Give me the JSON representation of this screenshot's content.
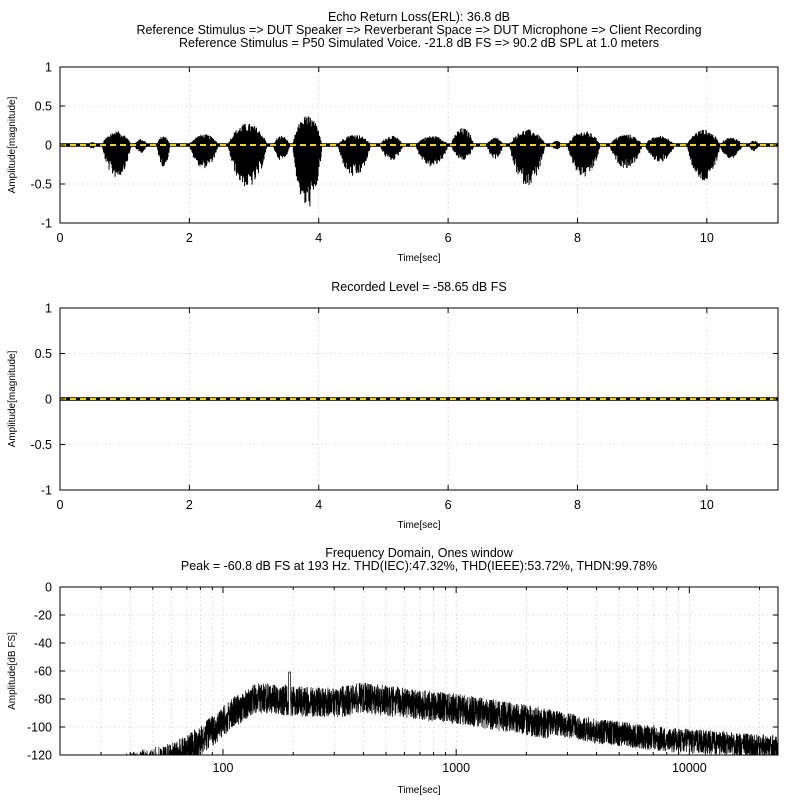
{
  "chart_data": [
    {
      "type": "line",
      "title_lines": [
        "Echo Return Loss(ERL): 36.8 dB",
        "Reference Stimulus => DUT Speaker => Reverberant Space => DUT Microphone => Client Recording",
        "Reference Stimulus = P50 Simulated Voice. -21.8 dB FS => 90.2 dB SPL at 1.0 meters"
      ],
      "xlabel": "Time[sec]",
      "ylabel": "Amplitude[magnitude]",
      "xlim": [
        0,
        11.1
      ],
      "ylim": [
        -1,
        1
      ],
      "xticks": [
        0,
        2,
        4,
        6,
        8,
        10
      ],
      "yticks": [
        1,
        0.5,
        0,
        -0.5,
        -1
      ],
      "ytick_labels": [
        "1",
        "0.5",
        "0",
        "-0.5",
        "-1"
      ],
      "grid": true,
      "zero_line_colors": [
        "#000000",
        "#f2d400"
      ],
      "series": [
        {
          "style": "waveform-envelope",
          "color": "#000000",
          "bursts": [
            {
              "start": 0.45,
              "end": 0.55,
              "upper": 0.04,
              "lower": -0.05
            },
            {
              "start": 0.65,
              "end": 1.1,
              "upper": 0.18,
              "lower": -0.42
            },
            {
              "start": 1.15,
              "end": 1.35,
              "upper": 0.08,
              "lower": -0.1
            },
            {
              "start": 1.5,
              "end": 1.7,
              "upper": 0.12,
              "lower": -0.28
            },
            {
              "start": 2.0,
              "end": 2.45,
              "upper": 0.14,
              "lower": -0.3
            },
            {
              "start": 2.6,
              "end": 3.2,
              "upper": 0.28,
              "lower": -0.55
            },
            {
              "start": 3.3,
              "end": 3.55,
              "upper": 0.12,
              "lower": -0.2
            },
            {
              "start": 3.6,
              "end": 4.05,
              "upper": 0.38,
              "lower": -0.82
            },
            {
              "start": 4.3,
              "end": 4.8,
              "upper": 0.14,
              "lower": -0.42
            },
            {
              "start": 4.95,
              "end": 5.3,
              "upper": 0.12,
              "lower": -0.2
            },
            {
              "start": 5.5,
              "end": 6.0,
              "upper": 0.12,
              "lower": -0.28
            },
            {
              "start": 6.05,
              "end": 6.4,
              "upper": 0.22,
              "lower": -0.2
            },
            {
              "start": 6.6,
              "end": 6.85,
              "upper": 0.1,
              "lower": -0.18
            },
            {
              "start": 6.95,
              "end": 7.5,
              "upper": 0.2,
              "lower": -0.52
            },
            {
              "start": 7.6,
              "end": 7.75,
              "upper": 0.06,
              "lower": -0.06
            },
            {
              "start": 7.85,
              "end": 8.35,
              "upper": 0.18,
              "lower": -0.42
            },
            {
              "start": 8.5,
              "end": 9.0,
              "upper": 0.14,
              "lower": -0.3
            },
            {
              "start": 9.05,
              "end": 9.5,
              "upper": 0.12,
              "lower": -0.22
            },
            {
              "start": 9.7,
              "end": 10.2,
              "upper": 0.2,
              "lower": -0.48
            },
            {
              "start": 10.2,
              "end": 10.55,
              "upper": 0.1,
              "lower": -0.18
            },
            {
              "start": 10.65,
              "end": 10.8,
              "upper": 0.06,
              "lower": -0.08
            }
          ]
        }
      ]
    },
    {
      "type": "line",
      "title_lines": [
        "Recorded Level = -58.65 dB FS"
      ],
      "xlabel": "Time[sec]",
      "ylabel": "Amplitude[magnitude]",
      "xlim": [
        0,
        11.1
      ],
      "ylim": [
        -1,
        1
      ],
      "xticks": [
        0,
        2,
        4,
        6,
        8,
        10
      ],
      "yticks": [
        1,
        0.5,
        0,
        -0.5,
        -1
      ],
      "ytick_labels": [
        "1",
        "0.5",
        "0",
        "-0.5",
        "-1"
      ],
      "grid": true,
      "zero_line_colors": [
        "#000000",
        "#f2d400"
      ],
      "series": []
    },
    {
      "type": "line",
      "title_lines": [
        "Frequency Domain, Ones window",
        "Peak = -60.8 dB FS at 193 Hz. THD(IEC):47.32%, THD(IEEE):53.72%, THDN:99.78%"
      ],
      "xlabel": "Time[sec]",
      "ylabel": "Amplitude[dB FS]",
      "xscale": "log",
      "xlim": [
        20,
        24000
      ],
      "ylim": [
        -120,
        0
      ],
      "xticks": [
        100,
        1000,
        10000
      ],
      "xtick_labels": [
        "100",
        "1000",
        "10000"
      ],
      "yticks": [
        0,
        -20,
        -40,
        -60,
        -80,
        -100,
        -120
      ],
      "ytick_labels": [
        "0",
        "-20",
        "-40",
        "-60",
        "-80",
        "-100",
        "-120"
      ],
      "grid": true,
      "series": [
        {
          "style": "spectrum",
          "color": "#000000",
          "peak": {
            "freq": 193,
            "db": -60.8
          },
          "envelope": [
            {
              "freq": 32,
              "db": -122
            },
            {
              "freq": 40,
              "db": -118
            },
            {
              "freq": 55,
              "db": -113
            },
            {
              "freq": 70,
              "db": -106
            },
            {
              "freq": 90,
              "db": -92
            },
            {
              "freq": 110,
              "db": -79
            },
            {
              "freq": 140,
              "db": -68
            },
            {
              "freq": 193,
              "db": -70
            },
            {
              "freq": 300,
              "db": -72
            },
            {
              "freq": 400,
              "db": -68
            },
            {
              "freq": 600,
              "db": -72
            },
            {
              "freq": 1000,
              "db": -76
            },
            {
              "freq": 2000,
              "db": -84
            },
            {
              "freq": 4000,
              "db": -94
            },
            {
              "freq": 8000,
              "db": -100
            },
            {
              "freq": 24000,
              "db": -106
            }
          ]
        }
      ]
    }
  ]
}
